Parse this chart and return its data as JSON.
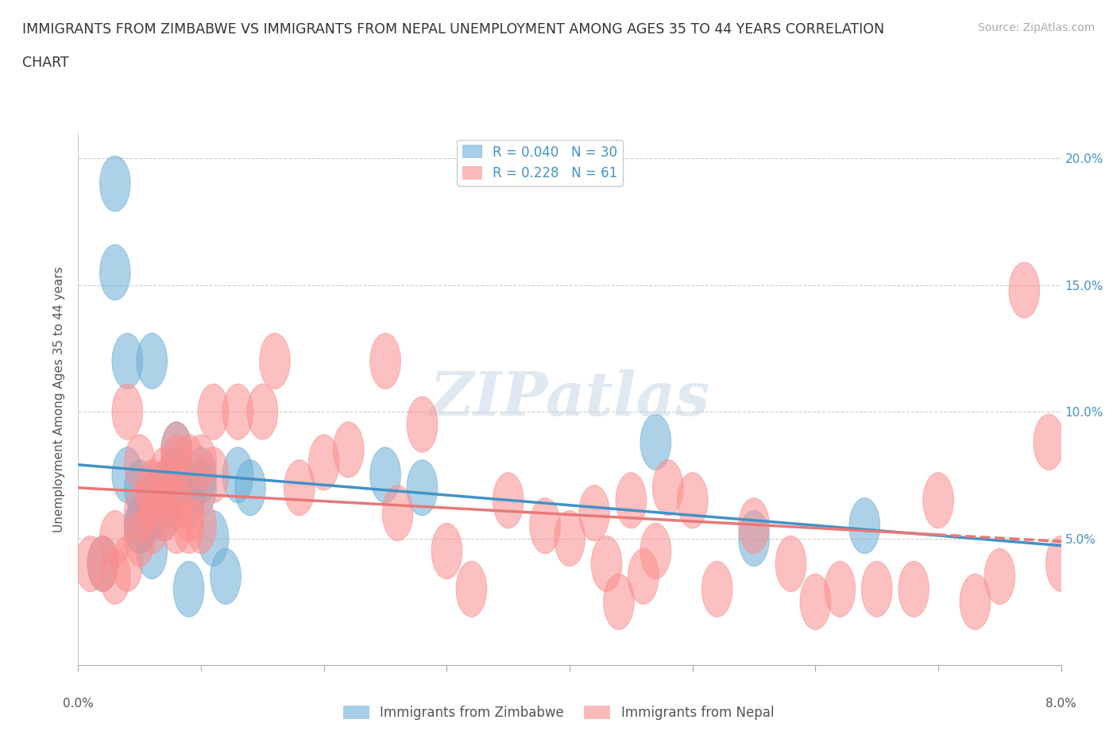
{
  "title_line1": "IMMIGRANTS FROM ZIMBABWE VS IMMIGRANTS FROM NEPAL UNEMPLOYMENT AMONG AGES 35 TO 44 YEARS CORRELATION",
  "title_line2": "CHART",
  "source": "Source: ZipAtlas.com",
  "ylabel": "Unemployment Among Ages 35 to 44 years",
  "xlim": [
    0.0,
    0.08
  ],
  "ylim": [
    -0.005,
    0.215
  ],
  "plot_ylim": [
    0.0,
    0.21
  ],
  "xticks": [
    0.0,
    0.08
  ],
  "yticks": [
    0.05,
    0.1,
    0.15,
    0.2
  ],
  "xticklabels_edge": [
    "0.0%",
    "8.0%"
  ],
  "yticklabels": [
    "5.0%",
    "10.0%",
    "15.0%",
    "20.0%"
  ],
  "zimbabwe_color": "#6baed6",
  "nepal_color": "#fc8d8d",
  "zimbabwe_line_color": "#4292c6",
  "nepal_line_color": "#e87878",
  "zimbabwe_R": 0.04,
  "zimbabwe_N": 30,
  "nepal_R": 0.228,
  "nepal_N": 61,
  "watermark": "ZIPatlas",
  "zimbabwe_x": [
    0.002,
    0.003,
    0.004,
    0.005,
    0.005,
    0.005,
    0.006,
    0.006,
    0.006,
    0.007,
    0.007,
    0.007,
    0.008,
    0.008,
    0.009,
    0.009,
    0.01,
    0.01,
    0.011,
    0.012,
    0.013,
    0.014,
    0.025,
    0.028,
    0.047,
    0.055,
    0.064,
    0.003,
    0.004,
    0.006
  ],
  "zimbabwe_y": [
    0.04,
    0.19,
    0.12,
    0.07,
    0.055,
    0.055,
    0.065,
    0.06,
    0.045,
    0.07,
    0.065,
    0.06,
    0.085,
    0.075,
    0.065,
    0.03,
    0.07,
    0.075,
    0.05,
    0.035,
    0.075,
    0.07,
    0.075,
    0.07,
    0.088,
    0.05,
    0.055,
    0.155,
    0.075,
    0.12
  ],
  "nepal_x": [
    0.001,
    0.002,
    0.003,
    0.003,
    0.004,
    0.004,
    0.005,
    0.005,
    0.005,
    0.006,
    0.006,
    0.006,
    0.007,
    0.007,
    0.007,
    0.008,
    0.008,
    0.008,
    0.008,
    0.009,
    0.009,
    0.009,
    0.01,
    0.01,
    0.011,
    0.011,
    0.013,
    0.015,
    0.016,
    0.018,
    0.02,
    0.022,
    0.025,
    0.026,
    0.028,
    0.03,
    0.032,
    0.035,
    0.038,
    0.04,
    0.042,
    0.043,
    0.044,
    0.045,
    0.046,
    0.047,
    0.048,
    0.05,
    0.052,
    0.055,
    0.058,
    0.06,
    0.062,
    0.065,
    0.068,
    0.07,
    0.073,
    0.075,
    0.077,
    0.079,
    0.08
  ],
  "nepal_y": [
    0.04,
    0.04,
    0.035,
    0.05,
    0.04,
    0.1,
    0.06,
    0.05,
    0.08,
    0.055,
    0.07,
    0.065,
    0.06,
    0.07,
    0.075,
    0.065,
    0.055,
    0.08,
    0.085,
    0.055,
    0.06,
    0.08,
    0.08,
    0.055,
    0.075,
    0.1,
    0.1,
    0.1,
    0.12,
    0.07,
    0.08,
    0.085,
    0.12,
    0.06,
    0.095,
    0.045,
    0.03,
    0.065,
    0.055,
    0.05,
    0.06,
    0.04,
    0.025,
    0.065,
    0.035,
    0.045,
    0.07,
    0.065,
    0.03,
    0.055,
    0.04,
    0.025,
    0.03,
    0.03,
    0.03,
    0.065,
    0.025,
    0.035,
    0.148,
    0.088,
    0.04
  ]
}
